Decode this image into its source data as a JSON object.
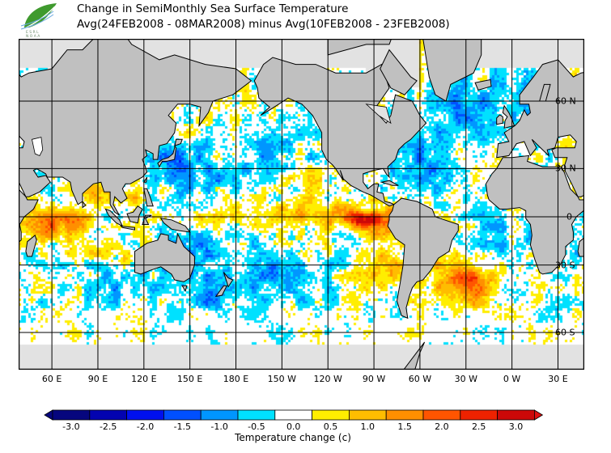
{
  "header": {
    "title": "Change in SemiMonthly Sea Surface Temperature",
    "subtitle": "Avg(24FEB2008 - 08MAR2008) minus Avg(10FEB2008 - 23FEB2008)",
    "logo": {
      "icon": "green-leaf-logo",
      "text": "ESRL NOAA"
    }
  },
  "map": {
    "projection": "mercator",
    "lon_range": [
      "38 E",
      "47 E (wrapped)"
    ],
    "lat_range": [
      "70 S",
      "75 N"
    ],
    "land_color": "#c0c0c0",
    "ice_color": "#e2e2e2",
    "lon_labels": [
      "60 E",
      "90 E",
      "120 E",
      "150 E",
      "180 E",
      "150 W",
      "120 W",
      "90 W",
      "60 W",
      "30 W",
      "0 W",
      "30 E"
    ],
    "lat_labels": [
      "60 N",
      "30 N",
      "0",
      "30 S",
      "60 S"
    ]
  },
  "colorbar": {
    "title": "Temperature change  (c)",
    "labels": [
      "-3.0",
      "-2.5",
      "-2.0",
      "-1.5",
      "-1.0",
      "-0.5",
      "0.0",
      "0.5",
      "1.0",
      "1.5",
      "2.0",
      "2.5",
      "3.0"
    ],
    "colors": [
      "#06067e",
      "#0303b0",
      "#0010ee",
      "#0050ff",
      "#0096ff",
      "#00e1ff",
      "#ffffff",
      "#ffee00",
      "#ffbd00",
      "#ff8f00",
      "#ff5500",
      "#ee2200",
      "#cc0808"
    ],
    "under_color": "#06067e",
    "over_color": "#dd1010"
  }
}
